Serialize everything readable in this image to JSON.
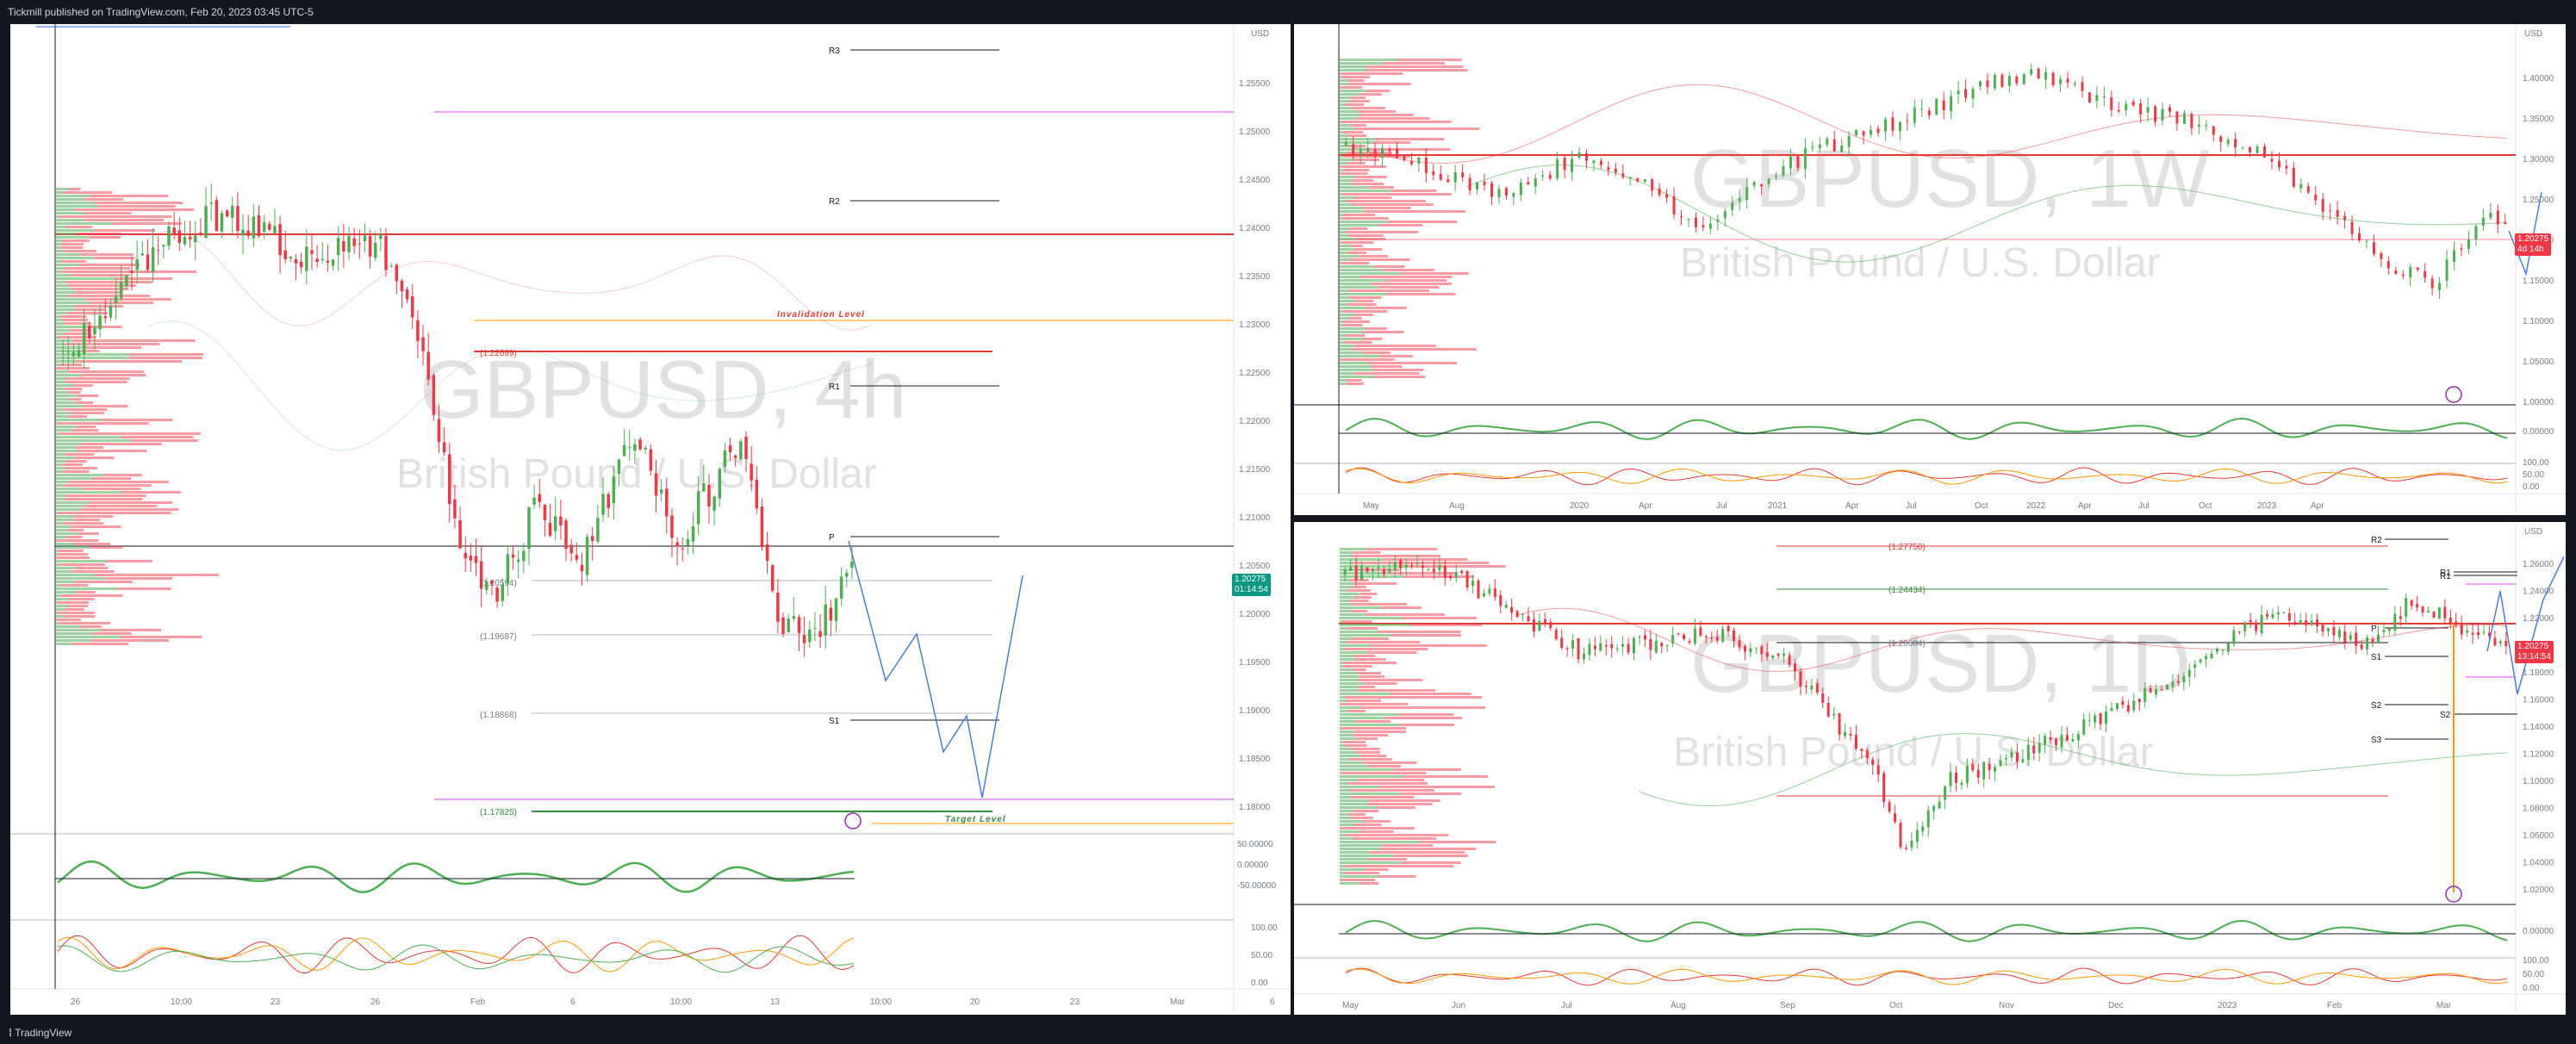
{
  "header": {
    "publish_text": "Tickmill published on TradingView.com, Feb 20, 2023 03:45 UTC-5"
  },
  "footer": {
    "brand": "TradingView"
  },
  "panels": {
    "left": {
      "watermark_symbol": "GBPUSD, 4h",
      "watermark_name": "British Pound / U.S. Dollar",
      "currency": "USD",
      "price_badge": "1.20275",
      "countdown": "01:14:54",
      "price_ticks": [
        "1.25500",
        "1.25000",
        "1.24500",
        "1.24000",
        "1.23500",
        "1.23000",
        "1.22500",
        "1.22000",
        "1.21500",
        "1.21000",
        "1.20500",
        "1.20000",
        "1.19500",
        "1.19000",
        "1.18500",
        "1.18000"
      ],
      "osc_ticks": [
        "50.00000",
        "0.00000",
        "-50.00000"
      ],
      "stoch_ticks": [
        "100.00",
        "50.00",
        "0.00"
      ],
      "date_ticks": [
        "26",
        "10:00",
        "23",
        "26",
        "Feb",
        "6",
        "10:00",
        "13",
        "10:00",
        "20",
        "23",
        "Mar",
        "6"
      ],
      "pivots": [
        "R3",
        "R2",
        "R1",
        "P",
        "S1"
      ],
      "fib_levels": [
        "(1.22699)",
        "(1.20594)",
        "(1.19687)",
        "(1.18868)",
        "(1.17825)"
      ],
      "annotations": {
        "invalidation": "Invalidation Level",
        "target": "Target Level"
      }
    },
    "top_right": {
      "watermark_symbol": "GBPUSD, 1W",
      "watermark_name": "British Pound / U.S. Dollar",
      "currency": "USD",
      "price_badge": "1.20275",
      "countdown": "4d 14h",
      "price_ticks": [
        "1.40000",
        "1.35000",
        "1.30000",
        "1.25000",
        "1.20000",
        "1.15000",
        "1.10000",
        "1.05000",
        "1.00000"
      ],
      "osc_ticks": [
        "0.00000"
      ],
      "stoch_ticks": [
        "100.00",
        "50.00",
        "0.00"
      ],
      "date_ticks": [
        "May",
        "Aug",
        "2020",
        "Apr",
        "Jul",
        "2021",
        "Apr",
        "Jul",
        "Oct",
        "2022",
        "Apr",
        "Jul",
        "Oct",
        "2023",
        "Apr"
      ]
    },
    "bottom_right": {
      "watermark_symbol": "GBPUSD, 1D",
      "watermark_name": "British Pound / U.S. Dollar",
      "currency": "USD",
      "price_badge": "1.20275",
      "countdown": "13:14:54",
      "price_ticks": [
        "1.26000",
        "1.24000",
        "1.22000",
        "1.20000",
        "1.18000",
        "1.16000",
        "1.14000",
        "1.12000",
        "1.10000",
        "1.08000",
        "1.06000",
        "1.04000",
        "1.02000"
      ],
      "osc_ticks": [
        "0.00000"
      ],
      "stoch_ticks": [
        "100.00",
        "50.00",
        "0.00"
      ],
      "date_ticks": [
        "May",
        "Jun",
        "Jul",
        "Aug",
        "Sep",
        "Oct",
        "Nov",
        "Dec",
        "2023",
        "Feb",
        "Mar"
      ],
      "pivots": [
        "R2",
        "R1",
        "R1",
        "P",
        "S1",
        "S2",
        "S2",
        "S3"
      ],
      "fib_levels": [
        "(1.27750)",
        "(1.24434)",
        "(1.20684)"
      ]
    }
  },
  "colors": {
    "bull": "#4caf50",
    "bear": "#f23645",
    "accent_red": "#e53935",
    "pivot_black": "#131722",
    "fib_green": "#388e3c",
    "magenta": "#e040fb",
    "orange": "#ff9800",
    "blue": "#2962ff"
  }
}
